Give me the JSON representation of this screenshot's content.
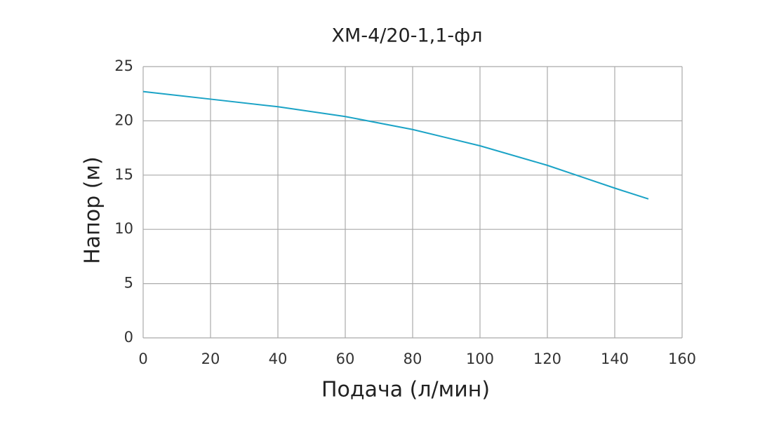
{
  "chart_data": {
    "type": "line",
    "title": "ХМ-4/20-1,1-фл",
    "x_label": "Подача (л/мин)",
    "y_label": "Напор (м)",
    "x": [
      0,
      20,
      40,
      60,
      80,
      100,
      120,
      140,
      150
    ],
    "series": [
      {
        "name": "ХМ-4/20-1,1-фл",
        "color": "#1ba3c6",
        "values": [
          22.7,
          22.0,
          21.3,
          20.4,
          19.2,
          17.7,
          15.9,
          13.8,
          12.8
        ]
      }
    ],
    "xlim": [
      0,
      160
    ],
    "xticks": [
      0,
      20,
      40,
      60,
      80,
      100,
      120,
      140,
      160
    ],
    "ylim": [
      0,
      25
    ],
    "yticks": [
      0,
      5,
      10,
      15,
      20,
      25
    ],
    "grid": true
  }
}
